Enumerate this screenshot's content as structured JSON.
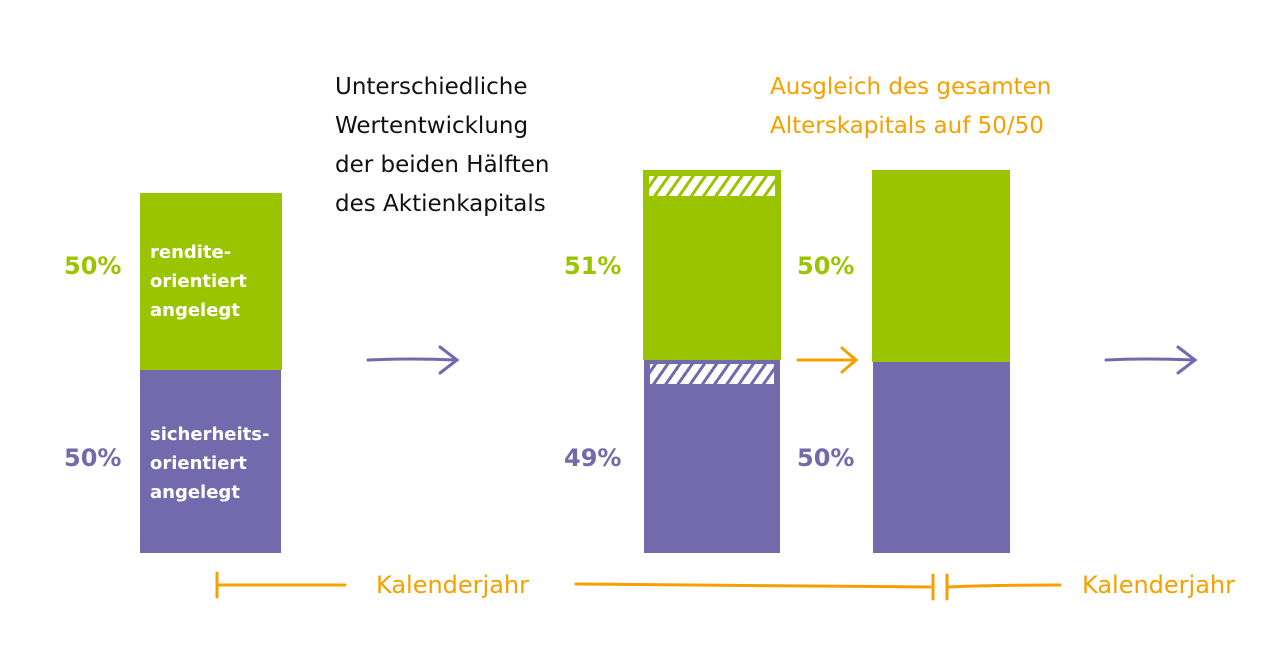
{
  "colors": {
    "green": "#9bc400",
    "purple": "#726aad",
    "orange": "#f4a100",
    "text": "#111111"
  },
  "annotation_left": "Unterschiedliche\nWertentwicklung\nder beiden Hälften\ndes Aktienkapitals",
  "annotation_right": "Ausgleich des gesamten\nAlterskapitals auf 50/50",
  "bar1": {
    "top_pct": "50%",
    "bottom_pct": "50%",
    "top_label": "rendite-\norientiert\nangelegt",
    "bottom_label": "sicherheits-\norientiert\nangelegt",
    "top_value": 50,
    "bottom_value": 50
  },
  "bar2": {
    "top_pct": "51%",
    "bottom_pct": "49%",
    "top_value": 51,
    "bottom_value": 49
  },
  "bar3": {
    "top_pct": "50%",
    "bottom_pct": "50%",
    "top_value": 50,
    "bottom_value": 50
  },
  "timeline": {
    "label1": "Kalenderjahr",
    "label2": "Kalenderjahr"
  },
  "icons": [
    "arrow-right-icon",
    "arrow-right-icon",
    "arrow-right-icon"
  ]
}
